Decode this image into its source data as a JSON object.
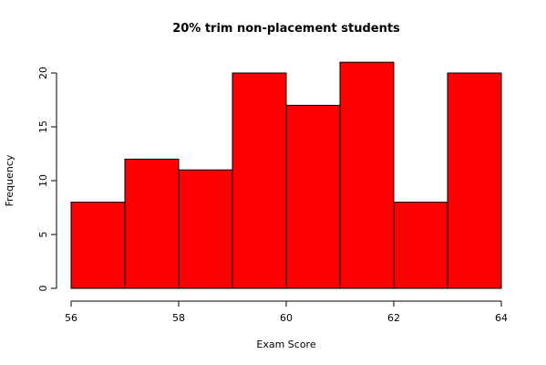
{
  "chart_data": {
    "type": "histogram",
    "title": "20% trim non-placement students",
    "x_label": "Exam Score",
    "y_label": "Frequency",
    "bins": [
      56,
      57,
      58,
      59,
      60,
      61,
      62,
      63,
      64
    ],
    "values": [
      8,
      12,
      11,
      20,
      17,
      21,
      8,
      20
    ],
    "color": "#ff0000",
    "xlim": [
      56,
      64
    ],
    "xticks": [
      56,
      58,
      60,
      62,
      64
    ],
    "ylim": [
      0,
      21
    ],
    "yticks": [
      0,
      5,
      10,
      15,
      20
    ]
  }
}
